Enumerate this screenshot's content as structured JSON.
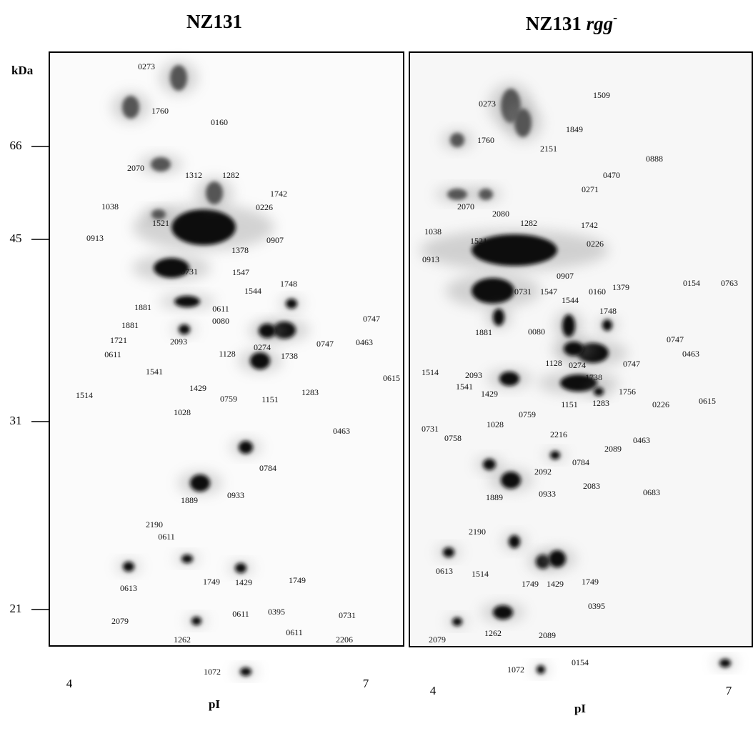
{
  "left_panel": {
    "title": "NZ131",
    "y_axis": {
      "unit": "kDa",
      "ticks": [
        66,
        45,
        31,
        21
      ]
    },
    "x_axis": {
      "min": 4,
      "max": 7,
      "label": "pI"
    },
    "spot_labels": [
      "0273",
      "1760",
      "0160",
      "2070",
      "1312",
      "1282",
      "1742",
      "1038",
      "0226",
      "1521",
      "0913",
      "0907",
      "1378",
      "0731",
      "1547",
      "1748",
      "1544",
      "1881",
      "0611",
      "0080",
      "0747",
      "1881",
      "2093",
      "1721",
      "0274",
      "0463",
      "0611",
      "1128",
      "1738",
      "0747",
      "0615",
      "1541",
      "1429",
      "1514",
      "1028",
      "0759",
      "1151",
      "1283",
      "0463",
      "0784",
      "1889",
      "0933",
      "2190",
      "0611",
      "0613",
      "1749",
      "1429",
      "1749",
      "0611",
      "0395",
      "0731",
      "2079",
      "1262",
      "0611",
      "2206",
      "1072"
    ]
  },
  "right_panel": {
    "title": "NZ131",
    "title_italic": "rgg",
    "title_superscript": "-",
    "x_axis": {
      "min": 4,
      "max": 7,
      "label": "pI"
    },
    "spot_labels": [
      "0273",
      "1509",
      "1760",
      "1849",
      "0888",
      "2151",
      "0470",
      "0271",
      "2070",
      "2080",
      "1282",
      "1742",
      "1038",
      "1521",
      "0226",
      "0913",
      "0907",
      "1379",
      "0154",
      "0763",
      "0731",
      "1547",
      "0160",
      "1544",
      "1748",
      "1881",
      "0080",
      "0747",
      "0463",
      "2093",
      "1128",
      "0274",
      "0747",
      "1738",
      "1514",
      "1541",
      "1429",
      "1756",
      "1283",
      "0226",
      "0615",
      "1151",
      "0759",
      "1028",
      "0731",
      "0758",
      "2216",
      "2089",
      "0463",
      "2092",
      "0784",
      "2083",
      "0683",
      "1889",
      "0933",
      "2190",
      "0613",
      "1514",
      "1749",
      "1429",
      "1749",
      "0395",
      "2079",
      "1262",
      "2089",
      "1072",
      "0154"
    ]
  }
}
